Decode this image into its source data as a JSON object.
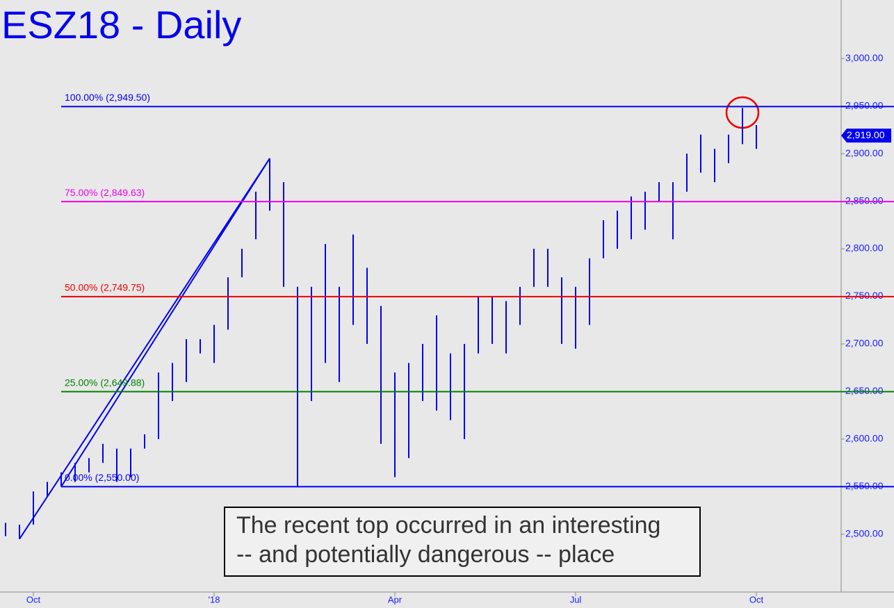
{
  "chart_data": {
    "type": "ohlc",
    "title": "ESZ18 - Daily",
    "color": "#0000ee",
    "categories": [
      null,
      null,
      "Oct",
      null,
      null,
      null,
      null,
      null,
      null,
      null,
      null,
      null,
      null,
      null,
      null,
      "'18",
      null,
      null,
      null,
      null,
      null,
      null,
      null,
      null,
      null,
      null,
      null,
      null,
      "Apr",
      null,
      null,
      null,
      null,
      null,
      null,
      null,
      null,
      null,
      null,
      null,
      null,
      "Jul",
      null,
      null,
      null,
      null,
      null,
      null,
      null,
      null,
      null,
      null,
      null,
      null,
      "Oct"
    ],
    "high": [
      2512,
      2510,
      2545,
      2555,
      2565,
      2575,
      2580,
      2595,
      2590,
      2590,
      2605,
      2670,
      2680,
      2705,
      2705,
      2720,
      2770,
      2800,
      2860,
      2895,
      2870,
      2760,
      2760,
      2805,
      2760,
      2815,
      2780,
      2740,
      2670,
      2680,
      2700,
      2730,
      2690,
      2700,
      2750,
      2750,
      2745,
      2760,
      2800,
      2800,
      2770,
      2760,
      2790,
      2830,
      2840,
      2855,
      2860,
      2870,
      2870,
      2900,
      2920,
      2905,
      2920,
      2948,
      2930
    ],
    "low": [
      2498,
      2495,
      2510,
      2540,
      2550,
      2555,
      2565,
      2575,
      2555,
      2560,
      2590,
      2600,
      2640,
      2660,
      2690,
      2680,
      2715,
      2770,
      2810,
      2840,
      2760,
      2550,
      2640,
      2680,
      2660,
      2720,
      2700,
      2595,
      2560,
      2580,
      2640,
      2630,
      2620,
      2600,
      2690,
      2700,
      2690,
      2720,
      2760,
      2760,
      2700,
      2695,
      2720,
      2790,
      2800,
      2810,
      2820,
      2850,
      2810,
      2860,
      2880,
      2870,
      2890,
      2910,
      2905
    ],
    "swing": [
      2495,
      2895,
      2550
    ],
    "levels": [
      {
        "label": "100.00% (2,949.50)",
        "value": 2949.5,
        "color": "#0000ee"
      },
      {
        "label": "75.00% (2,849.63)",
        "value": 2849.63,
        "color": "#ee00ee"
      },
      {
        "label": "50.00% (2,749.75)",
        "value": 2749.75,
        "color": "#ee0000"
      },
      {
        "label": "25.00% (2,649.88)",
        "value": 2649.88,
        "color": "#008000"
      },
      {
        "label": "0.00% (2,550.00)",
        "value": 2550,
        "color": "#0000ee"
      }
    ],
    "last_price": {
      "value": 2919,
      "label": "2,919.00"
    },
    "ylim": [
      2440,
      3060
    ],
    "yticks": [
      {
        "value": 2500,
        "label": "2,500.00"
      },
      {
        "value": 2550,
        "label": "2,550.00"
      },
      {
        "value": 2600,
        "label": "2,600.00"
      },
      {
        "value": 2650,
        "label": "2,650.00"
      },
      {
        "value": 2700,
        "label": "2,700.00"
      },
      {
        "value": 2750,
        "label": "2,750.00"
      },
      {
        "value": 2800,
        "label": "2,800.00"
      },
      {
        "value": 2850,
        "label": "2,850.00"
      },
      {
        "value": 2900,
        "label": "2,900.00"
      },
      {
        "value": 2950,
        "label": "2,950.00"
      },
      {
        "value": 3000,
        "label": "3,000.00"
      }
    ],
    "annotation": [
      "The recent top occurred in an interesting",
      "-- and potentially dangerous -- place"
    ]
  }
}
